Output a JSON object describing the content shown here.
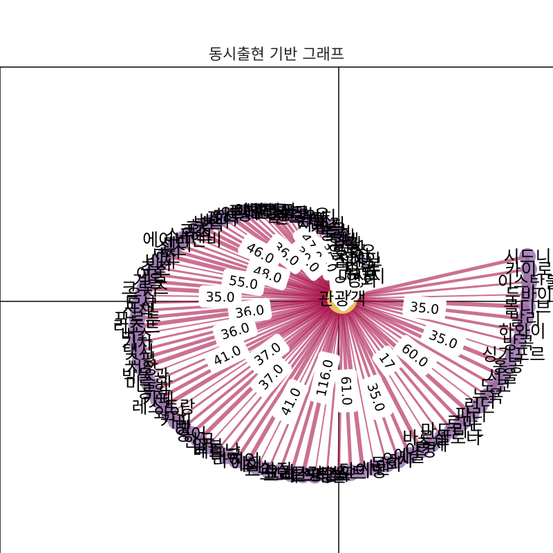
{
  "chart_data": {
    "type": "network",
    "title": "동시출현 기반 그래프",
    "colors": {
      "edge": "#a8104a",
      "node": "#9b7ab3",
      "hub_node": "#f0e060",
      "node_alt": "#9cc0cf",
      "axis": "#000000"
    },
    "nodes": [
      "관광객",
      "영화",
      "마사지",
      "유럽",
      "미국",
      "리스본",
      "스페인",
      "선장",
      "옐로우",
      "공항",
      "관광",
      "호텔",
      "독일",
      "풍경",
      "마을",
      "가족",
      "자전거",
      "펍",
      "캠핑",
      "샌드위치",
      "올드타운",
      "광장",
      "리스크",
      "영국",
      "중국",
      "이탈리아",
      "대만",
      "맥주",
      "루터",
      "안녕",
      "하루",
      "조식",
      "바다",
      "부엌",
      "호주",
      "코스",
      "스위스",
      "에어비앤비",
      "센터",
      "숙소",
      "사진",
      "비치",
      "추천",
      "여름",
      "겨울",
      "크루즈",
      "음식",
      "도시",
      "산책",
      "포르투",
      "리조트",
      "버스",
      "기차",
      "택시",
      "쇼핑",
      "시장",
      "박물관",
      "미술관",
      "공원",
      "카페",
      "레스토랑",
      "와인",
      "커피",
      "빵",
      "영어",
      "한국",
      "일본",
      "베트남",
      "태국",
      "라이언",
      "에어",
      "주스",
      "브라질",
      "요가",
      "스노클링",
      "크리스마스",
      "페스티벌",
      "프랑스",
      "항구",
      "요트",
      "다이빙",
      "사원",
      "문화",
      "역사",
      "예술",
      "야경",
      "축제",
      "바르셀로나",
      "마드리드",
      "로마",
      "파리",
      "런던",
      "뉴욕",
      "도쿄",
      "서울",
      "홍콩",
      "싱가포르",
      "방콕",
      "하와이",
      "발리",
      "몰디브",
      "두바이",
      "이스탄불",
      "카이로",
      "시드니"
    ],
    "edge_weights": [
      "40.0",
      "36.0",
      "35.0",
      "35.0",
      "35.0",
      "47.0",
      "39.0",
      "36.0",
      "46.0",
      "48.0",
      "55.0",
      "35.0",
      "36.0",
      "36.0",
      "41.0",
      "37.0",
      "37.0",
      "41.0",
      "116.0",
      "61.0",
      "35.0",
      "17",
      "60.0",
      "35.0",
      "35.0"
    ]
  }
}
